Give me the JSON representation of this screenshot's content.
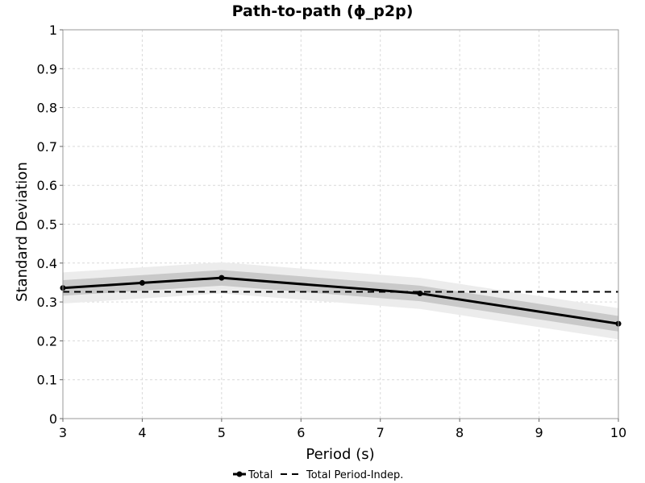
{
  "chart_data": {
    "type": "line",
    "title": "Path-to-path (ϕ_p2p)",
    "xlabel": "Period (s)",
    "ylabel": "Standard Deviation",
    "xlim": [
      3,
      10
    ],
    "ylim": [
      0,
      1
    ],
    "xticks": [
      "3",
      "4",
      "5",
      "6",
      "7",
      "8",
      "9",
      "10"
    ],
    "yticks": [
      "0",
      "0.1",
      "0.2",
      "0.3",
      "0.4",
      "0.5",
      "0.6",
      "0.7",
      "0.8",
      "0.9",
      "1"
    ],
    "grid": true,
    "legend_position": "bottom-center",
    "series": [
      {
        "name": "Total",
        "style": "solid-with-markers",
        "color": "#000000",
        "x": [
          3,
          4,
          5,
          7.5,
          10
        ],
        "y": [
          0.336,
          0.349,
          0.362,
          0.322,
          0.244
        ]
      },
      {
        "name": "Total Period-Indep.",
        "style": "dashed",
        "color": "#000000",
        "x": [
          3,
          10
        ],
        "y": [
          0.326,
          0.326
        ]
      }
    ],
    "bands": [
      {
        "color": "#ececec",
        "x": [
          3,
          4,
          5,
          7.5,
          10
        ],
        "lower": [
          0.296,
          0.309,
          0.322,
          0.282,
          0.204
        ],
        "upper": [
          0.376,
          0.389,
          0.402,
          0.362,
          0.284
        ]
      },
      {
        "color": "#c9c9c9",
        "x": [
          3,
          4,
          5,
          7.5,
          10
        ],
        "lower": [
          0.316,
          0.329,
          0.342,
          0.302,
          0.224
        ],
        "upper": [
          0.356,
          0.369,
          0.382,
          0.342,
          0.264
        ]
      }
    ]
  }
}
